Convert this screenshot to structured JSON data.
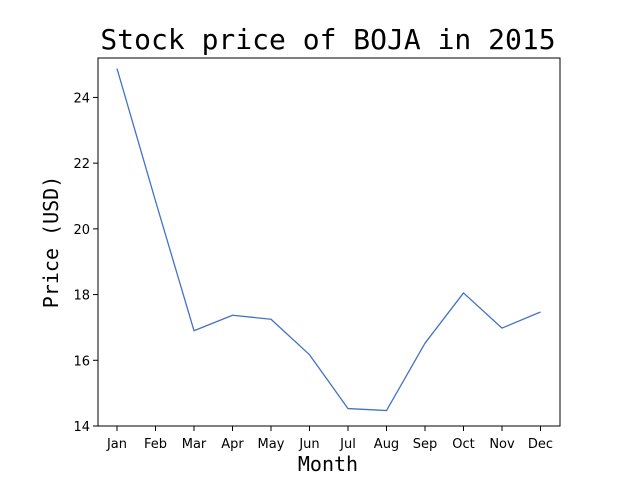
{
  "chart_data": {
    "type": "line",
    "title": "Stock price of BOJA in 2015",
    "xlabel": "Month",
    "ylabel": "Price (USD)",
    "categories": [
      "Jan",
      "Feb",
      "Mar",
      "Apr",
      "May",
      "Jun",
      "Jul",
      "Aug",
      "Sep",
      "Oct",
      "Nov",
      "Dec"
    ],
    "series": [
      {
        "values": [
          24.88,
          20.85,
          16.9,
          17.37,
          17.25,
          16.17,
          14.53,
          14.47,
          16.52,
          18.05,
          16.98,
          17.47
        ],
        "color": "#4472c4"
      }
    ],
    "ylim": [
      14,
      25.2
    ],
    "yticks": [
      14,
      16,
      18,
      20,
      22,
      24
    ],
    "grid": false,
    "legend": "none"
  }
}
